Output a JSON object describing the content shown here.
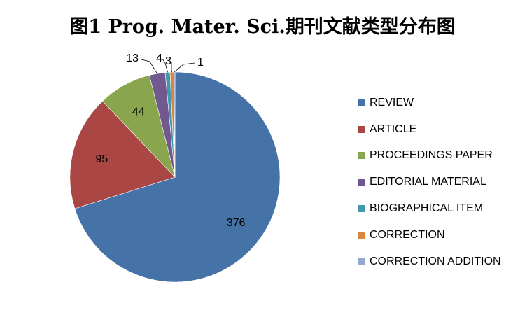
{
  "chart_data": {
    "type": "pie",
    "title": "图1 Prog. Mater. Sci.期刊文献类型分布图",
    "legend_position": "right",
    "slices": [
      {
        "name": "REVIEW",
        "value": 376,
        "color": "#4572a7"
      },
      {
        "name": "ARTICLE",
        "value": 95,
        "color": "#aa4643"
      },
      {
        "name": "PROCEEDINGS PAPER",
        "value": 44,
        "color": "#89a54e"
      },
      {
        "name": "EDITORIAL MATERIAL",
        "value": 13,
        "color": "#71588f"
      },
      {
        "name": "BIOGRAPHICAL ITEM",
        "value": 4,
        "color": "#4198af"
      },
      {
        "name": "CORRECTION",
        "value": 3,
        "color": "#db843d"
      },
      {
        "name": "CORRECTION ADDITION",
        "value": 1,
        "color": "#93a9cf"
      }
    ]
  }
}
